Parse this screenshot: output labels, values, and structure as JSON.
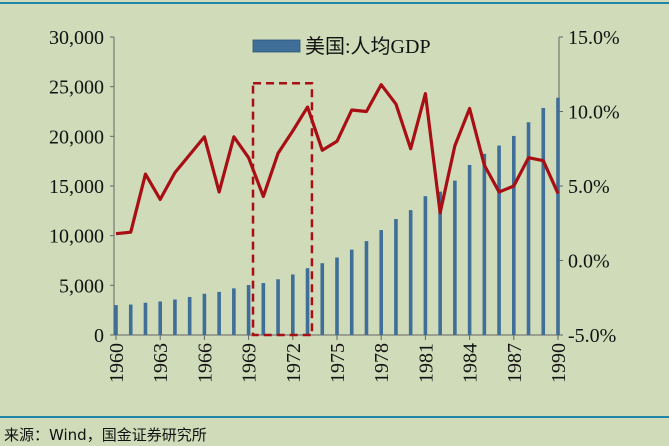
{
  "chart_data": {
    "type": "bar+line",
    "legend": [
      {
        "label": "美国:人均GDP",
        "color": "#3f6e99"
      }
    ],
    "legend_placement": "top-center",
    "x": [
      1960,
      1961,
      1962,
      1963,
      1964,
      1965,
      1966,
      1967,
      1968,
      1969,
      1970,
      1971,
      1972,
      1973,
      1974,
      1975,
      1976,
      1977,
      1978,
      1979,
      1980,
      1981,
      1982,
      1983,
      1984,
      1985,
      1986,
      1987,
      1988,
      1989,
      1990
    ],
    "x_tick_labels": [
      "1960",
      "1963",
      "1966",
      "1969",
      "1972",
      "1975",
      "1978",
      "1981",
      "1984",
      "1987",
      "1990"
    ],
    "series": [
      {
        "name": "美国:人均GDP",
        "type": "bar",
        "axis": "left",
        "color": "#3f6e99",
        "values": [
          3007,
          3067,
          3243,
          3374,
          3573,
          3828,
          4146,
          4336,
          4696,
          5032,
          5234,
          5609,
          6094,
          6726,
          7226,
          7801,
          8592,
          9453,
          10565,
          11674,
          12575,
          13976,
          14434,
          15544,
          17121,
          18237,
          19071,
          20039,
          21417,
          22857,
          23889
        ]
      },
      {
        "type": "line",
        "axis": "right",
        "color": "#a80f14",
        "values": [
          1.8,
          1.9,
          5.8,
          4.1,
          5.9,
          7.1,
          8.3,
          4.6,
          8.3,
          6.9,
          4.3,
          7.2,
          8.7,
          10.3,
          7.4,
          8.0,
          10.1,
          10.0,
          11.8,
          10.5,
          7.5,
          11.2,
          3.2,
          7.7,
          10.2,
          6.4,
          4.6,
          5.0,
          6.9,
          6.7,
          4.5
        ]
      }
    ],
    "left_axis": {
      "range": [
        0,
        30000
      ],
      "tick_labels": [
        "0",
        "5,000",
        "10,000",
        "15,000",
        "20,000",
        "25,000",
        "30,000"
      ]
    },
    "right_axis": {
      "range": [
        -5,
        15
      ],
      "tick_labels": [
        "-5.0%",
        "0.0%",
        "5.0%",
        "10.0%",
        "15.0%"
      ]
    },
    "annotation": {
      "type": "dashed-box",
      "color": "#a80f14",
      "x_range": [
        1969.3,
        1973.3
      ],
      "y_range_right": [
        -5,
        11.9
      ]
    },
    "grid": false
  },
  "source": "来源：Wind，国金证券研究所",
  "colors": {
    "background": "#cfdbb9",
    "rule": "#1f86a8"
  }
}
